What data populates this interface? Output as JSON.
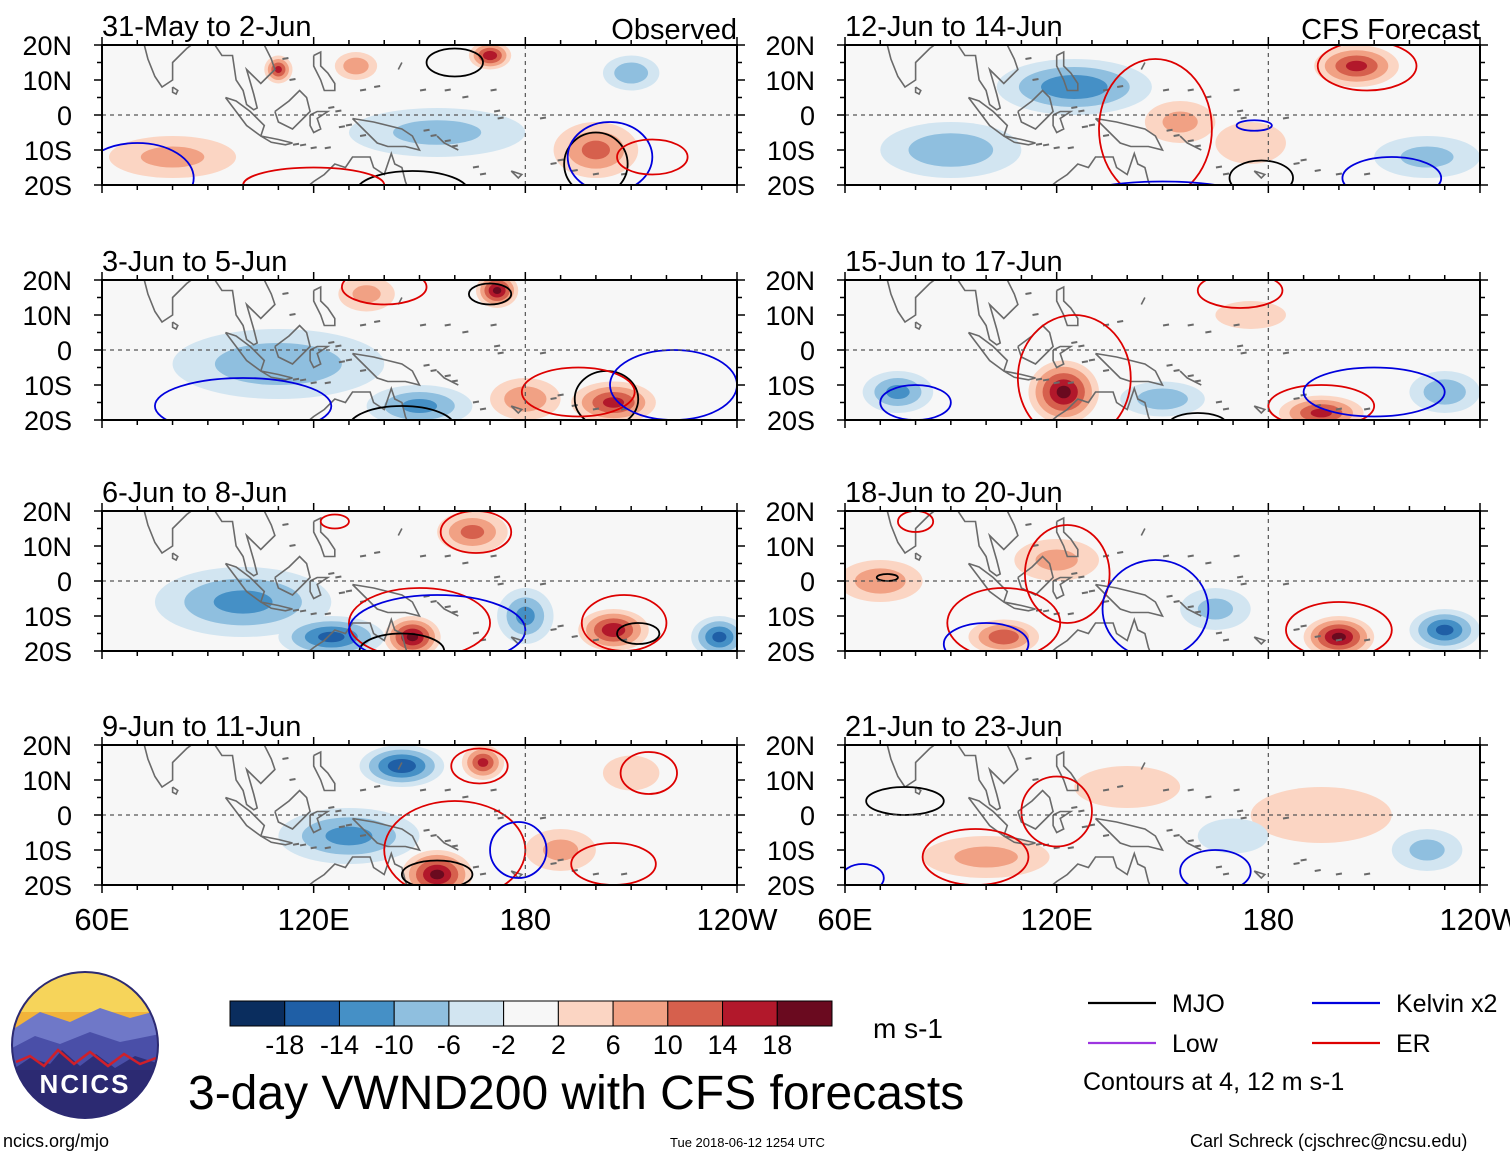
{
  "chart_data": {
    "type": "heatmap",
    "title": "3-day VWND200 with CFS forecasts",
    "variable": "VWND200",
    "units": "m s-1",
    "observed_label": "Observed",
    "forecast_label": "CFS Forecast",
    "x_ticks": [
      "60E",
      "120E",
      "180",
      "120W"
    ],
    "y_ticks": [
      "20N",
      "10N",
      "0",
      "10S",
      "20S"
    ],
    "lon_range": [
      60,
      240
    ],
    "lat_range": [
      -20,
      20
    ],
    "colorbar": {
      "ticks": [
        "-18",
        "-14",
        "-10",
        "-6",
        "-2",
        "2",
        "6",
        "10",
        "14",
        "18"
      ],
      "colors": [
        "#0a2d5e",
        "#1f5fa6",
        "#4590c6",
        "#8fbfdf",
        "#d2e5f1",
        "#f7f7f7",
        "#fbd5c3",
        "#f1a184",
        "#d6604d",
        "#b2182b",
        "#6a0a1f"
      ]
    },
    "legend": {
      "items": [
        {
          "label": "MJO",
          "color": "#000000"
        },
        {
          "label": "Kelvin x2",
          "color": "#0000dd"
        },
        {
          "label": "Low",
          "color": "#9d35e0"
        },
        {
          "label": "ER",
          "color": "#dd0000"
        }
      ],
      "contours_note": "Contours at 4, 12 m s-1"
    },
    "panels": [
      {
        "period": "31-May to 2-Jun",
        "source": "Observed",
        "blobs": [
          [
            110,
            13,
            4,
            4,
            14
          ],
          [
            132,
            14,
            6,
            4,
            8
          ],
          [
            170,
            17,
            6,
            4,
            16
          ],
          [
            155,
            -5,
            25,
            7,
            -6
          ],
          [
            210,
            12,
            8,
            5,
            -8
          ],
          [
            200,
            -10,
            12,
            8,
            10
          ],
          [
            80,
            -12,
            18,
            6,
            6
          ]
        ],
        "contours": [
          {
            "c": "MJO",
            "lon": 160,
            "lat": 15,
            "rx": 8,
            "ry": 4
          },
          {
            "c": "MJO",
            "lon": 200,
            "lat": -14,
            "rx": 9,
            "ry": 9
          },
          {
            "c": "MJO",
            "lon": 148,
            "lat": -22,
            "rx": 16,
            "ry": 6
          },
          {
            "c": "Kelvin x2",
            "lon": 204,
            "lat": -12,
            "rx": 12,
            "ry": 10
          },
          {
            "c": "Kelvin x2",
            "lon": 70,
            "lat": -18,
            "rx": 16,
            "ry": 10
          },
          {
            "c": "ER",
            "lon": 216,
            "lat": -12,
            "rx": 10,
            "ry": 5
          },
          {
            "c": "ER",
            "lon": 120,
            "lat": -20,
            "rx": 20,
            "ry": 5
          }
        ]
      },
      {
        "period": "12-Jun to 14-Jun",
        "source": "CFS Forecast",
        "blobs": [
          [
            125,
            8,
            22,
            8,
            -12
          ],
          [
            90,
            -10,
            20,
            8,
            -8
          ],
          [
            155,
            -2,
            10,
            6,
            6
          ],
          [
            205,
            14,
            12,
            6,
            14
          ],
          [
            175,
            -8,
            10,
            6,
            4
          ],
          [
            225,
            -12,
            15,
            6,
            -6
          ]
        ],
        "contours": [
          {
            "c": "ER",
            "lon": 208,
            "lat": 14,
            "rx": 14,
            "ry": 7
          },
          {
            "c": "ER",
            "lon": 148,
            "lat": -4,
            "rx": 16,
            "ry": 20
          },
          {
            "c": "MJO",
            "lon": 178,
            "lat": -18,
            "rx": 9,
            "ry": 5
          },
          {
            "c": "Kelvin x2",
            "lon": 176,
            "lat": -3,
            "rx": 5,
            "ry": 1.5
          },
          {
            "c": "Kelvin x2",
            "lon": 215,
            "lat": -18,
            "rx": 14,
            "ry": 6
          },
          {
            "c": "Kelvin x2",
            "lon": 150,
            "lat": -24,
            "rx": 25,
            "ry": 5
          }
        ]
      },
      {
        "period": "3-Jun to 5-Jun",
        "source": "Observed",
        "blobs": [
          [
            172,
            17,
            6,
            5,
            18
          ],
          [
            135,
            16,
            8,
            5,
            6
          ],
          [
            205,
            -15,
            12,
            6,
            14
          ],
          [
            180,
            -14,
            10,
            6,
            8
          ],
          [
            110,
            -4,
            30,
            10,
            -8
          ],
          [
            150,
            -16,
            15,
            6,
            -10
          ]
        ],
        "contours": [
          {
            "c": "MJO",
            "lon": 170,
            "lat": 16,
            "rx": 6,
            "ry": 3
          },
          {
            "c": "MJO",
            "lon": 203,
            "lat": -14,
            "rx": 9,
            "ry": 8
          },
          {
            "c": "MJO",
            "lon": 145,
            "lat": -22,
            "rx": 15,
            "ry": 6
          },
          {
            "c": "ER",
            "lon": 140,
            "lat": 18,
            "rx": 12,
            "ry": 5
          },
          {
            "c": "ER",
            "lon": 195,
            "lat": -12,
            "rx": 16,
            "ry": 7
          },
          {
            "c": "Kelvin x2",
            "lon": 100,
            "lat": -16,
            "rx": 25,
            "ry": 8
          },
          {
            "c": "Kelvin x2",
            "lon": 222,
            "lat": -10,
            "rx": 18,
            "ry": 10
          }
        ]
      },
      {
        "period": "15-Jun to 17-Jun",
        "source": "CFS Forecast",
        "blobs": [
          [
            122,
            -12,
            10,
            9,
            18
          ],
          [
            195,
            -18,
            12,
            5,
            14
          ],
          [
            175,
            10,
            10,
            4,
            4
          ],
          [
            75,
            -12,
            10,
            6,
            -10
          ],
          [
            150,
            -14,
            12,
            5,
            -8
          ],
          [
            230,
            -12,
            10,
            6,
            -8
          ]
        ],
        "contours": [
          {
            "c": "ER",
            "lon": 125,
            "lat": -8,
            "rx": 16,
            "ry": 18
          },
          {
            "c": "ER",
            "lon": 172,
            "lat": 17,
            "rx": 12,
            "ry": 5
          },
          {
            "c": "ER",
            "lon": 195,
            "lat": -16,
            "rx": 15,
            "ry": 6
          },
          {
            "c": "MJO",
            "lon": 160,
            "lat": -21,
            "rx": 8,
            "ry": 3
          },
          {
            "c": "Kelvin x2",
            "lon": 210,
            "lat": -12,
            "rx": 20,
            "ry": 7
          },
          {
            "c": "Kelvin x2",
            "lon": 80,
            "lat": -15,
            "rx": 10,
            "ry": 5
          }
        ]
      },
      {
        "period": "6-Jun to 8-Jun",
        "source": "Observed",
        "blobs": [
          [
            148,
            -16,
            8,
            6,
            18
          ],
          [
            165,
            14,
            10,
            6,
            10
          ],
          [
            205,
            -14,
            10,
            6,
            16
          ],
          [
            100,
            -6,
            25,
            10,
            -10
          ],
          [
            125,
            -16,
            15,
            6,
            -14
          ],
          [
            180,
            -10,
            8,
            8,
            -10
          ],
          [
            235,
            -16,
            8,
            6,
            -14
          ]
        ],
        "contours": [
          {
            "c": "ER",
            "lon": 126,
            "lat": 17,
            "rx": 4,
            "ry": 2
          },
          {
            "c": "ER",
            "lon": 166,
            "lat": 14,
            "rx": 10,
            "ry": 6
          },
          {
            "c": "ER",
            "lon": 208,
            "lat": -12,
            "rx": 12,
            "ry": 8
          },
          {
            "c": "ER",
            "lon": 150,
            "lat": -12,
            "rx": 20,
            "ry": 10
          },
          {
            "c": "MJO",
            "lon": 145,
            "lat": -20,
            "rx": 12,
            "ry": 5
          },
          {
            "c": "MJO",
            "lon": 212,
            "lat": -15,
            "rx": 6,
            "ry": 3
          },
          {
            "c": "Kelvin x2",
            "lon": 155,
            "lat": -14,
            "rx": 25,
            "ry": 10
          }
        ]
      },
      {
        "period": "18-Jun to 20-Jun",
        "source": "CFS Forecast",
        "blobs": [
          [
            105,
            -16,
            10,
            5,
            12
          ],
          [
            200,
            -16,
            10,
            6,
            18
          ],
          [
            165,
            -8,
            10,
            6,
            -6
          ],
          [
            230,
            -14,
            10,
            6,
            -14
          ],
          [
            70,
            0,
            12,
            6,
            8
          ],
          [
            120,
            6,
            12,
            6,
            6
          ]
        ],
        "contours": [
          {
            "c": "ER",
            "lon": 105,
            "lat": -12,
            "rx": 16,
            "ry": 10
          },
          {
            "c": "ER",
            "lon": 200,
            "lat": -14,
            "rx": 15,
            "ry": 8
          },
          {
            "c": "ER",
            "lon": 80,
            "lat": 17,
            "rx": 5,
            "ry": 3
          },
          {
            "c": "ER",
            "lon": 123,
            "lat": 2,
            "rx": 12,
            "ry": 14
          },
          {
            "c": "MJO",
            "lon": 72,
            "lat": 1,
            "rx": 3,
            "ry": 1
          },
          {
            "c": "Kelvin x2",
            "lon": 100,
            "lat": -18,
            "rx": 12,
            "ry": 6
          },
          {
            "c": "Kelvin x2",
            "lon": 148,
            "lat": -8,
            "rx": 15,
            "ry": 14
          }
        ]
      },
      {
        "period": "9-Jun to 11-Jun",
        "source": "Observed",
        "blobs": [
          [
            155,
            -17,
            10,
            7,
            18
          ],
          [
            168,
            15,
            6,
            5,
            14
          ],
          [
            145,
            14,
            12,
            6,
            -16
          ],
          [
            130,
            -6,
            20,
            8,
            -10
          ],
          [
            190,
            -10,
            10,
            6,
            6
          ],
          [
            210,
            12,
            8,
            5,
            4
          ]
        ],
        "contours": [
          {
            "c": "ER",
            "lon": 167,
            "lat": 14,
            "rx": 8,
            "ry": 5
          },
          {
            "c": "ER",
            "lon": 215,
            "lat": 12,
            "rx": 8,
            "ry": 6
          },
          {
            "c": "ER",
            "lon": 160,
            "lat": -10,
            "rx": 20,
            "ry": 14
          },
          {
            "c": "ER",
            "lon": 205,
            "lat": -14,
            "rx": 12,
            "ry": 6
          },
          {
            "c": "MJO",
            "lon": 155,
            "lat": -17,
            "rx": 10,
            "ry": 4
          },
          {
            "c": "Kelvin x2",
            "lon": 178,
            "lat": -10,
            "rx": 8,
            "ry": 8
          }
        ]
      },
      {
        "period": "21-Jun to 23-Jun",
        "source": "CFS Forecast",
        "blobs": [
          [
            100,
            -12,
            18,
            6,
            6
          ],
          [
            140,
            8,
            15,
            6,
            4
          ],
          [
            195,
            0,
            20,
            8,
            3
          ],
          [
            225,
            -10,
            10,
            6,
            -6
          ],
          [
            170,
            -6,
            10,
            5,
            -4
          ]
        ],
        "contours": [
          {
            "c": "MJO",
            "lon": 77,
            "lat": 4,
            "rx": 11,
            "ry": 4
          },
          {
            "c": "ER",
            "lon": 97,
            "lat": -12,
            "rx": 15,
            "ry": 8
          },
          {
            "c": "ER",
            "lon": 120,
            "lat": 1,
            "rx": 10,
            "ry": 10
          },
          {
            "c": "Kelvin x2",
            "lon": 165,
            "lat": -16,
            "rx": 10,
            "ry": 6
          },
          {
            "c": "Kelvin x2",
            "lon": 65,
            "lat": -18,
            "rx": 6,
            "ry": 4
          }
        ]
      }
    ]
  },
  "footer": {
    "units_label": "m s-1",
    "title": "3-day VWND200 with CFS forecasts",
    "logo_text": "NCICS",
    "url": "ncics.org/mjo",
    "timestamp": "Tue 2018-06-12 1254 UTC",
    "credit": "Carl Schreck (cjschrec@ncsu.edu)"
  }
}
